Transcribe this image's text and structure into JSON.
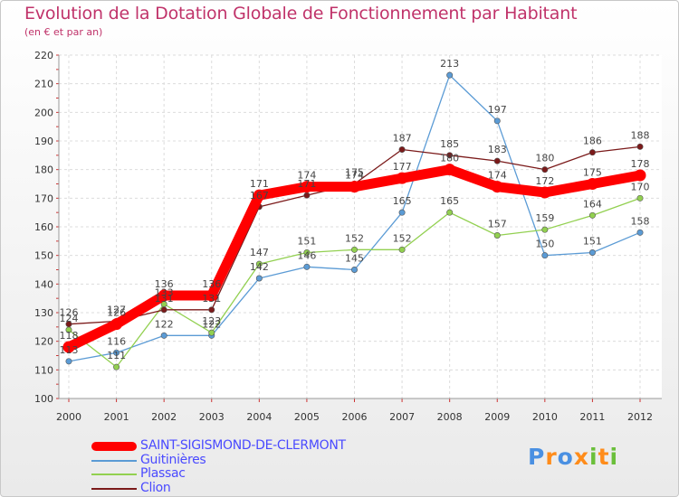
{
  "chart_data": {
    "type": "line",
    "title": "Evolution de la Dotation Globale de Fonctionnement par Habitant",
    "subtitle": "(en € et par an)",
    "x": [
      "2000",
      "2001",
      "2002",
      "2003",
      "2004",
      "2005",
      "2006",
      "2007",
      "2008",
      "2009",
      "2010",
      "2011",
      "2012"
    ],
    "ylim": [
      100,
      220
    ],
    "yticks": [
      "100",
      "110",
      "120",
      "130",
      "140",
      "150",
      "160",
      "170",
      "180",
      "190",
      "200",
      "210",
      "220"
    ],
    "grid": true,
    "legend_position": "bottom-left",
    "series": [
      {
        "name": "Guitinières",
        "color": "#5b9bd5",
        "values": [
          113,
          116,
          122,
          122,
          142,
          146,
          145,
          165,
          213,
          197,
          150,
          151,
          158
        ]
      },
      {
        "name": "Plassac",
        "color": "#92d050",
        "values": [
          124,
          111,
          133,
          123,
          147,
          151,
          152,
          152,
          165,
          157,
          159,
          164,
          170
        ]
      },
      {
        "name": "Clion",
        "color": "#7b1a1a",
        "values": [
          126,
          127,
          131,
          131,
          167,
          171,
          175,
          187,
          185,
          183,
          180,
          186,
          188
        ]
      },
      {
        "name": "SAINT-SIGISMOND-DE-CLERMONT",
        "color": "#ff0000",
        "values": [
          118,
          126,
          136,
          136,
          171,
          174,
          174,
          177,
          180,
          174,
          172,
          175,
          178
        ]
      }
    ]
  },
  "legend": [
    {
      "label": "SAINT-SIGISMOND-DE-CLERMONT",
      "color": "#ff0000",
      "text_color": "#4a4aff"
    },
    {
      "label": "Guitinières",
      "color": "#5b9bd5",
      "text_color": "#4a4aff"
    },
    {
      "label": "Plassac",
      "color": "#92d050",
      "text_color": "#4a4aff"
    },
    {
      "label": "Clion",
      "color": "#7b1a1a",
      "text_color": "#4a4aff"
    }
  ],
  "logo": {
    "text": "Proxiti",
    "letter_colors": [
      "#4a90e2",
      "#ff8c1a",
      "#4a90e2",
      "#ff8c1a",
      "#6abf3a",
      "#ff8c1a",
      "#6abf3a"
    ]
  }
}
